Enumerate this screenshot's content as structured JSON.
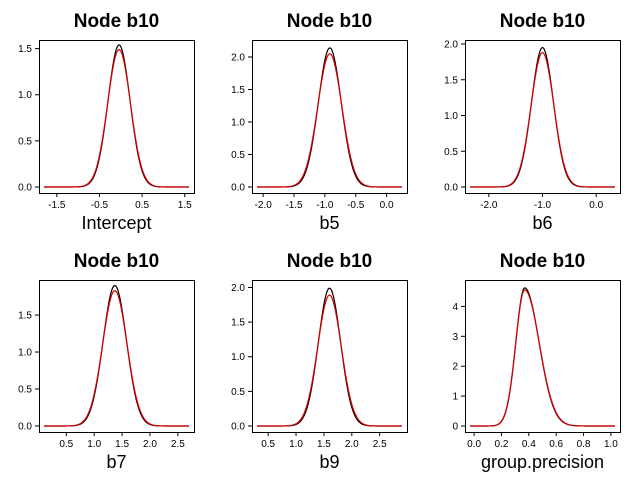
{
  "colors": {
    "prior": "#000000",
    "posterior": "#dd0000"
  },
  "chart_data": [
    {
      "type": "line",
      "title": "Node b10",
      "xlabel": "Intercept",
      "xlim": [
        -1.8,
        1.6
      ],
      "ylim": [
        0,
        1.55
      ],
      "xticks": [
        "-1.5",
        "-0.5",
        "0.5",
        "1.5"
      ],
      "yticks": [
        "0.0",
        "0.5",
        "1.0",
        "1.5"
      ],
      "series": [
        {
          "color": "#000000",
          "peak_x": -0.04,
          "peak_y": 1.54,
          "sd": 0.259
        },
        {
          "color": "#dd0000",
          "peak_x": -0.04,
          "peak_y": 1.49,
          "sd": 0.268
        }
      ]
    },
    {
      "type": "line",
      "title": "Node b10",
      "xlabel": "b5",
      "xlim": [
        -2.1,
        0.25
      ],
      "ylim": [
        0,
        2.2
      ],
      "xticks": [
        "-2.0",
        "-1.5",
        "-1.0",
        "-0.5",
        "0.0"
      ],
      "yticks": [
        "0.0",
        "0.5",
        "1.0",
        "1.5",
        "2.0"
      ],
      "series": [
        {
          "color": "#000000",
          "peak_x": -0.92,
          "peak_y": 2.14,
          "sd": 0.186
        },
        {
          "color": "#dd0000",
          "peak_x": -0.92,
          "peak_y": 2.05,
          "sd": 0.195
        }
      ]
    },
    {
      "type": "line",
      "title": "Node b10",
      "xlabel": "b6",
      "xlim": [
        -2.35,
        0.35
      ],
      "ylim": [
        0,
        2.0
      ],
      "xticks": [
        "-2.0",
        "-1.0",
        "0.0"
      ],
      "yticks": [
        "0.0",
        "0.5",
        "1.0",
        "1.5",
        "2.0"
      ],
      "series": [
        {
          "color": "#000000",
          "peak_x": -1.0,
          "peak_y": 1.95,
          "sd": 0.205
        },
        {
          "color": "#dd0000",
          "peak_x": -1.0,
          "peak_y": 1.88,
          "sd": 0.212
        }
      ]
    },
    {
      "type": "line",
      "title": "Node b10",
      "xlabel": "b7",
      "xlim": [
        0.1,
        2.7
      ],
      "ylim": [
        0,
        1.92
      ],
      "xticks": [
        "0.5",
        "1.0",
        "1.5",
        "2.0",
        "2.5"
      ],
      "yticks": [
        "0.0",
        "0.5",
        "1.0",
        "1.5"
      ],
      "series": [
        {
          "color": "#000000",
          "peak_x": 1.37,
          "peak_y": 1.9,
          "sd": 0.21
        },
        {
          "color": "#dd0000",
          "peak_x": 1.37,
          "peak_y": 1.83,
          "sd": 0.218
        }
      ]
    },
    {
      "type": "line",
      "title": "Node b10",
      "xlabel": "b9",
      "xlim": [
        0.3,
        2.9
      ],
      "ylim": [
        0,
        2.05
      ],
      "xticks": [
        "0.5",
        "1.0",
        "1.5",
        "2.0",
        "2.5"
      ],
      "yticks": [
        "0.0",
        "0.5",
        "1.0",
        "1.5",
        "2.0"
      ],
      "series": [
        {
          "color": "#000000",
          "peak_x": 1.6,
          "peak_y": 1.99,
          "sd": 0.2
        },
        {
          "color": "#dd0000",
          "peak_x": 1.6,
          "peak_y": 1.89,
          "sd": 0.211
        }
      ]
    },
    {
      "type": "line",
      "title": "Node b10",
      "xlabel": "group.precision",
      "xlim": [
        -0.03,
        1.03
      ],
      "ylim": [
        0,
        4.75
      ],
      "xticks": [
        "0.0",
        "0.2",
        "0.4",
        "0.6",
        "0.8",
        "1.0"
      ],
      "yticks": [
        "0",
        "1",
        "2",
        "3",
        "4"
      ],
      "series": [
        {
          "color": "#000000",
          "peak_x": 0.37,
          "peak_y": 4.62,
          "sd_left": 0.065,
          "sd_right": 0.105
        },
        {
          "color": "#dd0000",
          "peak_x": 0.37,
          "peak_y": 4.55,
          "sd_left": 0.066,
          "sd_right": 0.107
        }
      ]
    }
  ]
}
